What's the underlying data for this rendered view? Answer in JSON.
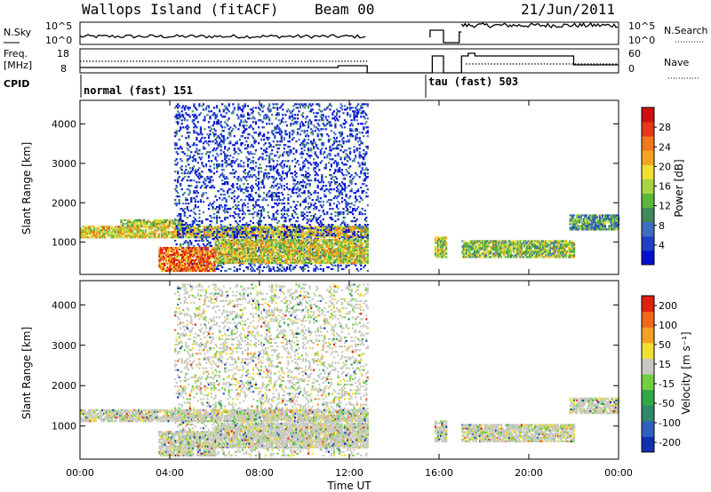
{
  "header": {
    "station": "Wallops Island (fitACF)",
    "beam": "Beam 00",
    "date": "21/Jun/2011"
  },
  "strip_panels": {
    "nsky_label": "N.Sky",
    "nsky_ticks": [
      "10^5",
      "10^0"
    ],
    "nsearch_label": "N.Search",
    "nsearch_ticks": [
      "10^5",
      "10^0"
    ],
    "freq_label_1": "Freq.",
    "freq_label_2": "[MHz]",
    "freq_ticks": [
      "18",
      "8"
    ],
    "nave_label": "Nave",
    "nave_ticks": [
      "60",
      "0"
    ],
    "cpid_label": "CPID",
    "cpid_modes": [
      {
        "name": "normal (fast) 151",
        "start_hour": 0.0
      },
      {
        "name": "tau (fast) 503",
        "start_hour": 15.7
      }
    ]
  },
  "x_axis": {
    "label": "Time UT",
    "tick_labels": [
      "00:00",
      "04:00",
      "08:00",
      "12:00",
      "16:00",
      "20:00",
      "00:00"
    ],
    "tick_hours": [
      0,
      4,
      8,
      12,
      16,
      20,
      24
    ]
  },
  "chart_data": [
    {
      "type": "heatmap",
      "title": "",
      "ylabel": "Slant Range [km]",
      "ylim": [
        180,
        4600
      ],
      "yticks": [
        1000,
        2000,
        3000,
        4000
      ],
      "xlim": [
        0,
        24
      ],
      "colorbar": {
        "label": "Power [dB]",
        "ticks": [
          "4",
          "8",
          "12",
          "16",
          "20",
          "24",
          "28"
        ],
        "colors": [
          "#0010d0",
          "#1e40c8",
          "#3f6ec0",
          "#3f8a5a",
          "#5ab93c",
          "#a8d442",
          "#f0e030",
          "#f4a520",
          "#f07818",
          "#e83818",
          "#d01010"
        ]
      },
      "regions": [
        {
          "t0": 0.0,
          "t1": 12.8,
          "r0": 1100,
          "r1": 1400,
          "level": 0.6
        },
        {
          "t0": 1.8,
          "t1": 4.5,
          "r0": 1400,
          "r1": 1550,
          "level": 0.5
        },
        {
          "t0": 4.2,
          "t1": 12.8,
          "r0": 250,
          "r1": 4500,
          "level": 0.1
        },
        {
          "t0": 3.5,
          "t1": 6.0,
          "r0": 250,
          "r1": 850,
          "level": 0.8
        },
        {
          "t0": 6.0,
          "t1": 12.8,
          "r0": 450,
          "r1": 1050,
          "level": 0.55
        },
        {
          "t0": 15.8,
          "t1": 16.3,
          "r0": 600,
          "r1": 1100,
          "level": 0.5
        },
        {
          "t0": 17.0,
          "t1": 22.0,
          "r0": 600,
          "r1": 1050,
          "level": 0.45
        },
        {
          "t0": 21.8,
          "t1": 24.0,
          "r0": 1300,
          "r1": 1700,
          "level": 0.35
        }
      ]
    },
    {
      "type": "heatmap",
      "title": "",
      "ylabel": "Slant Range [km]",
      "ylim": [
        180,
        4600
      ],
      "yticks": [
        1000,
        2000,
        3000,
        4000
      ],
      "xlim": [
        0,
        24
      ],
      "colorbar": {
        "label": "Velocity [m s⁻¹]",
        "ticks": [
          "200",
          "100",
          "50",
          "15",
          "-15",
          "-50",
          "-100",
          "-200"
        ],
        "colors": [
          "#1030b0",
          "#3060c0",
          "#2e8a6a",
          "#30a848",
          "#70d040",
          "#c8c8c0",
          "#f0e030",
          "#f4a020",
          "#f06818",
          "#e02010"
        ]
      },
      "regions": [
        {
          "t0": 0.0,
          "t1": 12.8,
          "r0": 1100,
          "r1": 1400,
          "level": 0.5
        },
        {
          "t0": 4.2,
          "t1": 12.8,
          "r0": 250,
          "r1": 4500,
          "level": 0.5
        },
        {
          "t0": 3.5,
          "t1": 6.0,
          "r0": 250,
          "r1": 850,
          "level": 0.5
        },
        {
          "t0": 6.0,
          "t1": 12.8,
          "r0": 450,
          "r1": 1050,
          "level": 0.5
        },
        {
          "t0": 15.8,
          "t1": 16.3,
          "r0": 600,
          "r1": 1100,
          "level": 0.5
        },
        {
          "t0": 17.0,
          "t1": 22.0,
          "r0": 600,
          "r1": 1050,
          "level": 0.5
        },
        {
          "t0": 21.8,
          "t1": 24.0,
          "r0": 1300,
          "r1": 1700,
          "level": 0.5
        }
      ]
    }
  ]
}
